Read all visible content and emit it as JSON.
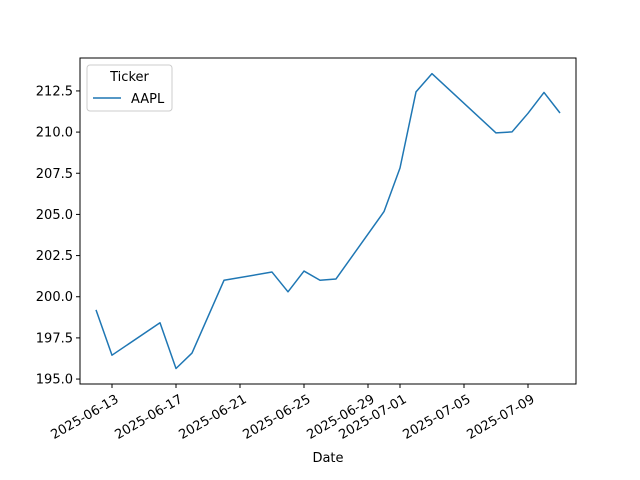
{
  "chart_data": {
    "type": "line",
    "title": "",
    "xlabel": "Date",
    "ylabel": "",
    "legend": {
      "title": "Ticker",
      "placement": "top-left"
    },
    "x_ticks": [
      "2025-06-13",
      "2025-06-17",
      "2025-06-21",
      "2025-06-25",
      "2025-06-29",
      "2025-07-01",
      "2025-07-05",
      "2025-07-09"
    ],
    "y_ticks": [
      195.0,
      197.5,
      200.0,
      202.5,
      205.0,
      207.5,
      210.0,
      212.5
    ],
    "ylim": [
      194.7,
      214.5
    ],
    "xlim": [
      "2025-06-11",
      "2025-07-12"
    ],
    "grid": false,
    "series": [
      {
        "name": "AAPL",
        "color": "#1f77b4",
        "x": [
          "2025-06-12",
          "2025-06-13",
          "2025-06-16",
          "2025-06-17",
          "2025-06-18",
          "2025-06-20",
          "2025-06-23",
          "2025-06-24",
          "2025-06-25",
          "2025-06-26",
          "2025-06-27",
          "2025-06-30",
          "2025-07-01",
          "2025-07-02",
          "2025-07-03",
          "2025-07-07",
          "2025-07-08",
          "2025-07-09",
          "2025-07-10",
          "2025-07-11"
        ],
        "values": [
          199.2,
          196.45,
          198.42,
          195.64,
          196.58,
          201.0,
          201.5,
          200.3,
          201.56,
          201.0,
          201.08,
          205.17,
          207.82,
          212.44,
          213.55,
          209.95,
          210.01,
          211.14,
          212.41,
          211.16
        ]
      }
    ]
  }
}
